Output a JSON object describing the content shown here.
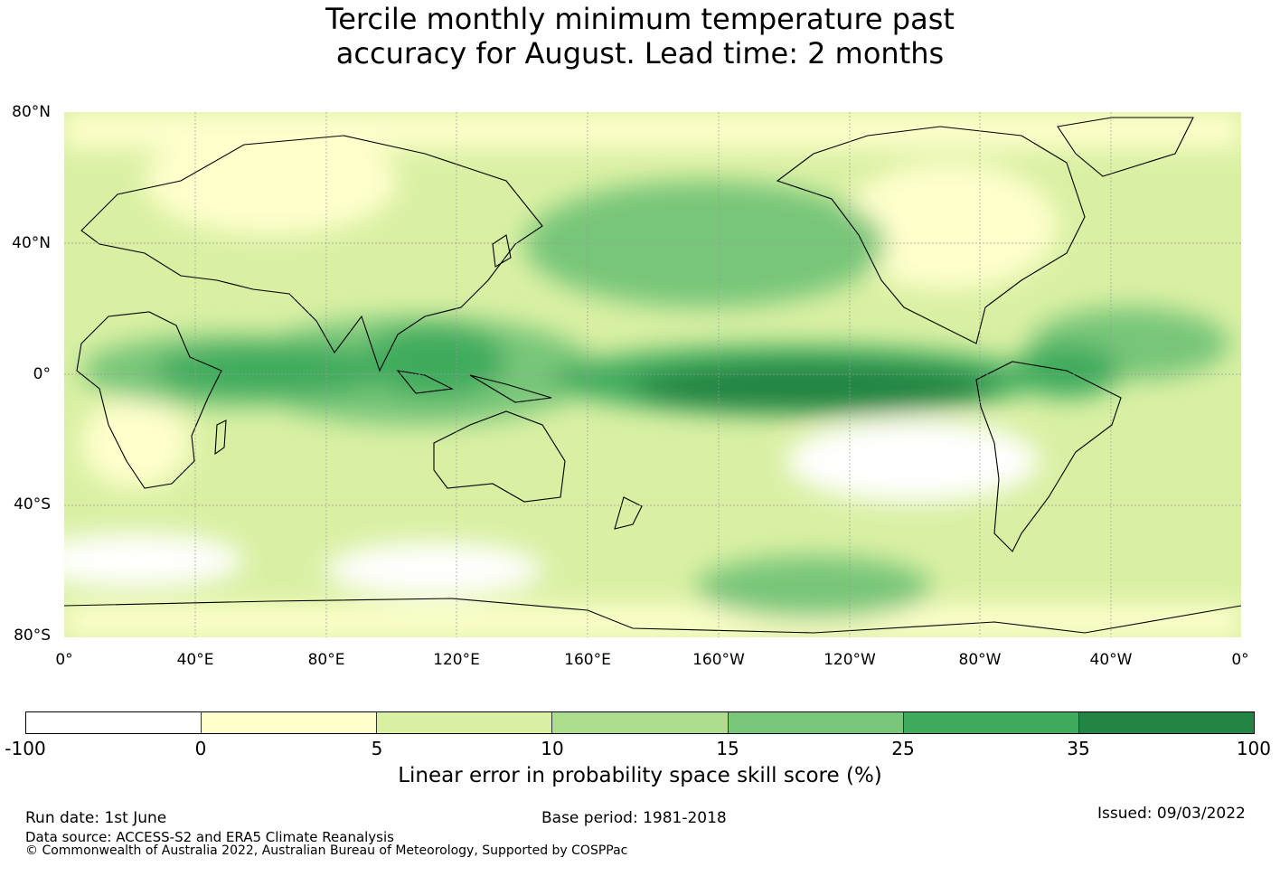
{
  "title_line1": "Tercile monthly minimum temperature past",
  "title_line2": "accuracy for August. Lead time: 2 months",
  "map": {
    "lat_labels": [
      "80°N",
      "40°N",
      "0°",
      "40°S",
      "80°S"
    ],
    "lon_labels": [
      "0°",
      "40°E",
      "80°E",
      "120°E",
      "160°E",
      "160°W",
      "120°W",
      "80°W",
      "40°W",
      "0°"
    ],
    "ocean_color": "#d8eea0",
    "land_outline_color": "#000000"
  },
  "colorbar": {
    "ticks": [
      "-100",
      "0",
      "5",
      "10",
      "15",
      "25",
      "35",
      "100"
    ],
    "colors": [
      "#ffffff",
      "#ffffcc",
      "#d9f0a3",
      "#addd8e",
      "#78c679",
      "#41ab5d",
      "#238443"
    ],
    "label": "Linear error in probability space skill score (%)"
  },
  "footer": {
    "run_date": "Run date: 1st June",
    "base_period": "Base period: 1981-2018",
    "issued": "Issued: 09/03/2022",
    "data_source": "Data source: ACCESS-S2 and ERA5 Climate Reanalysis",
    "copyright": "© Commonwealth of Australia 2022, Australian Bureau of Meteorology, Supported by COSPPac"
  }
}
